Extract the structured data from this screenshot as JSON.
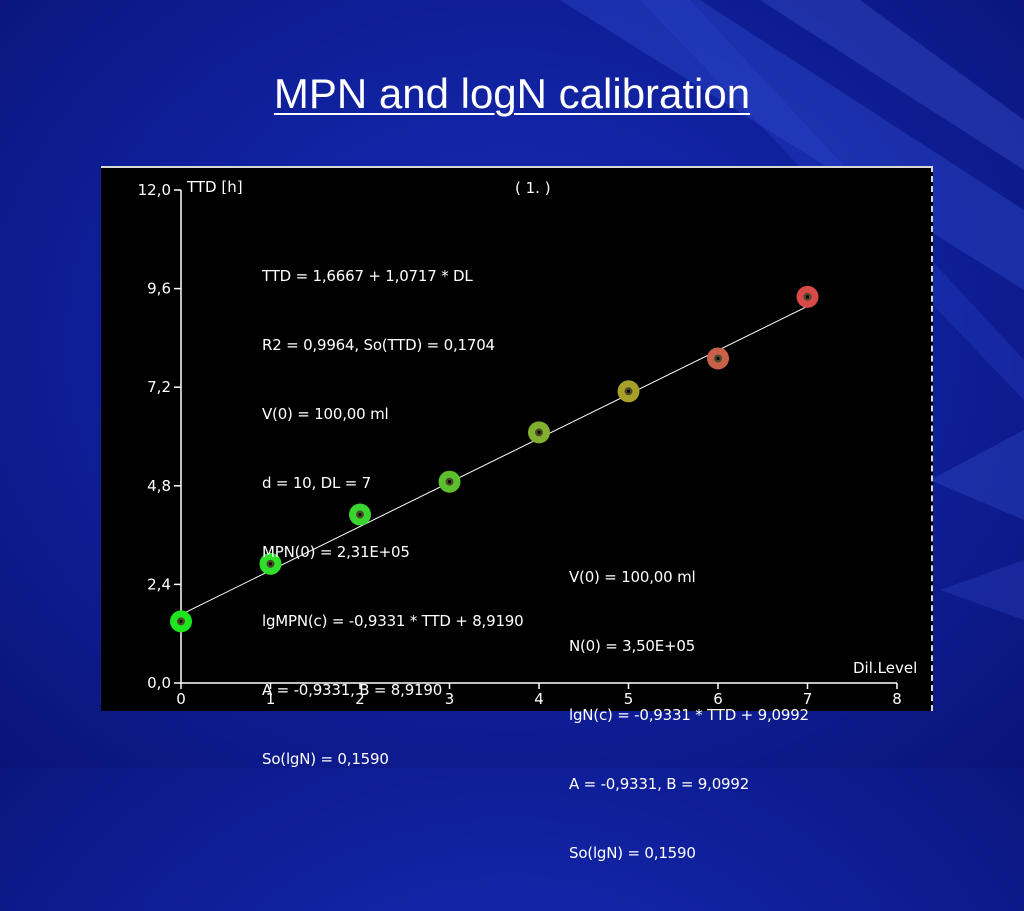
{
  "slide": {
    "title": "MPN and logN calibration"
  },
  "chart_data": {
    "type": "scatter",
    "panel_label": "( 1. )",
    "ylabel": "TTD [h]",
    "xlabel": "Dil.Level",
    "xlim": [
      0,
      8
    ],
    "ylim": [
      0,
      12
    ],
    "xticks": [
      0,
      1,
      2,
      3,
      4,
      5,
      6,
      7,
      8
    ],
    "xtick_labels": [
      "0",
      "1",
      "2",
      "3",
      "4",
      "5",
      "6",
      "7",
      "8"
    ],
    "yticks": [
      0,
      2.4,
      4.8,
      7.2,
      9.6,
      12
    ],
    "ytick_labels": [
      "0,0",
      "2,4",
      "4,8",
      "7,2",
      "9,6",
      "12,0"
    ],
    "points": [
      {
        "x": 0,
        "y": 1.5,
        "color": "#1ee61e"
      },
      {
        "x": 1,
        "y": 2.9,
        "color": "#2ee02a"
      },
      {
        "x": 2,
        "y": 4.1,
        "color": "#38d430"
      },
      {
        "x": 3,
        "y": 4.9,
        "color": "#5cbf2c"
      },
      {
        "x": 4,
        "y": 6.1,
        "color": "#82b02e"
      },
      {
        "x": 5,
        "y": 7.1,
        "color": "#a8a028"
      },
      {
        "x": 6,
        "y": 7.9,
        "color": "#c8604a"
      },
      {
        "x": 7,
        "y": 9.4,
        "color": "#d84a48"
      }
    ],
    "fit_line": {
      "intercept": 1.6667,
      "slope": 1.0717,
      "x_range": [
        0,
        7
      ],
      "color": "#ffffff"
    },
    "annotations_top": [
      "TTD = 1,6667 + 1,0717 * DL",
      "R2 = 0,9964, So(TTD) = 0,1704",
      "V(0) = 100,00 ml",
      "d = 10, DL = 7",
      "MPN(0) = 2,31E+05",
      "lgMPN(c) = -0,9331 * TTD + 8,9190",
      "A = -0,9331, B = 8,9190",
      "So(lgN) = 0,1590"
    ],
    "annotations_bottom": [
      "V(0) = 100,00 ml",
      "N(0) = 3,50E+05",
      "lgN(c) = -0,9331 * TTD + 9,0992",
      "A = -0,9331, B = 9,0992",
      "So(lgN) = 0,1590"
    ]
  }
}
